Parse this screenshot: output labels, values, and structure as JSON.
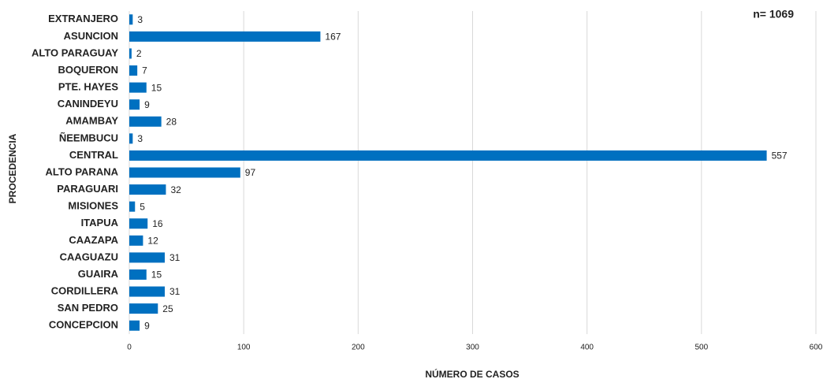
{
  "chart_data": {
    "type": "bar",
    "orientation": "horizontal",
    "annotation": "n= 1069",
    "x_label": "NÚMERO DE CASOS",
    "y_label": "PROCEDENCIA",
    "categories": [
      "EXTRANJERO",
      "ASUNCION",
      "ALTO PARAGUAY",
      "BOQUERON",
      "PTE. HAYES",
      "CANINDEYU",
      "AMAMBAY",
      "ÑEEMBUCU",
      "CENTRAL",
      "ALTO PARANA",
      "PARAGUARI",
      "MISIONES",
      "ITAPUA",
      "CAAZAPA",
      "CAAGUAZU",
      "GUAIRA",
      "CORDILLERA",
      "SAN PEDRO",
      "CONCEPCION"
    ],
    "values": [
      3,
      167,
      2,
      7,
      15,
      9,
      28,
      3,
      557,
      97,
      32,
      5,
      16,
      12,
      31,
      15,
      31,
      25,
      9
    ],
    "color": "#0070c0",
    "xlim": [
      0,
      600
    ],
    "xticks": [
      0,
      100,
      200,
      300,
      400,
      500,
      600
    ],
    "grid": true
  }
}
